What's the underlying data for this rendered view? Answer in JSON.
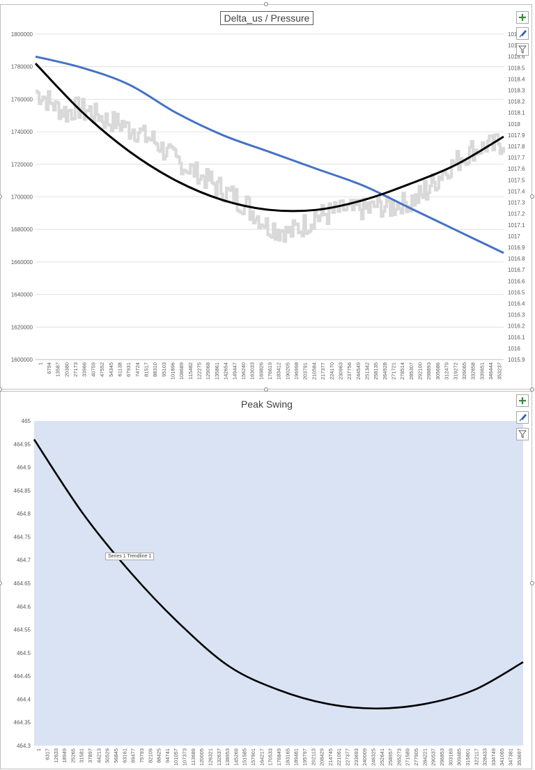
{
  "chart_data": [
    {
      "type": "line",
      "title": "Delta_us / Pressure",
      "y_left_ticks": [
        "1800000",
        "1780000",
        "1760000",
        "1740000",
        "1720000",
        "1700000",
        "1680000",
        "1660000",
        "1640000",
        "1620000",
        "1600000"
      ],
      "ylim_left": [
        1600000,
        1800000
      ],
      "y_right_ticks": [
        "1015.9",
        "1016",
        "1016.1",
        "1016.2",
        "1016.3",
        "1016.4",
        "1016.5",
        "1016.6",
        "1016.7",
        "1016.8",
        "1016.9",
        "1017",
        "1017.1",
        "1017.2",
        "1017.3",
        "1017.4",
        "1017.5",
        "1017.6",
        "1017.7",
        "1017.8",
        "1017.9",
        "1018",
        "1018.1",
        "1018.2",
        "1018.3",
        "1018.4",
        "1018.5",
        "1018.6",
        "1018.7",
        "1018.8"
      ],
      "ylim_right": [
        1015.9,
        1018.8
      ],
      "x_ticks": [
        "1",
        "6794",
        "13587",
        "20380",
        "27173",
        "33966",
        "40759",
        "47552",
        "54345",
        "61138",
        "67931",
        "74724",
        "81517",
        "88310",
        "95103",
        "101896",
        "108689",
        "115482",
        "122275",
        "129068",
        "135861",
        "142654",
        "149447",
        "156240",
        "163033",
        "169826",
        "176619",
        "183412",
        "190205",
        "196998",
        "203791",
        "210584",
        "217377",
        "224170",
        "230963",
        "237756",
        "244549",
        "251342",
        "258135",
        "264928",
        "271721",
        "278514",
        "285307",
        "292100",
        "298893",
        "305686",
        "312479",
        "319272",
        "326065",
        "332858",
        "339651",
        "346444",
        "353237"
      ],
      "series": [
        {
          "axis": "left",
          "color": "#d9d9d9",
          "style": "noisy",
          "x": [
            0,
            0.03,
            0.06,
            0.09,
            0.12,
            0.15,
            0.18,
            0.21,
            0.24,
            0.27,
            0.3,
            0.33,
            0.36,
            0.39,
            0.42,
            0.45,
            0.48,
            0.51,
            0.54,
            0.57,
            0.6,
            0.63,
            0.66,
            0.69,
            0.72,
            0.75,
            0.78,
            0.81,
            0.84,
            0.87,
            0.9,
            0.93,
            0.96,
            1.0
          ],
          "values": [
            1765000,
            1758000,
            1752000,
            1755000,
            1752000,
            1748000,
            1744000,
            1741000,
            1736000,
            1730000,
            1722000,
            1717000,
            1712000,
            1706000,
            1700000,
            1694000,
            1686000,
            1680000,
            1678000,
            1682000,
            1688000,
            1690000,
            1692000,
            1692000,
            1694000,
            1694000,
            1696000,
            1698000,
            1706000,
            1715000,
            1722000,
            1728000,
            1731000,
            1733000
          ]
        },
        {
          "axis": "right",
          "color": "#4472c4",
          "x": [
            0,
            0.1,
            0.2,
            0.3,
            0.4,
            0.5,
            0.6,
            0.7,
            0.8,
            0.9,
            1.0
          ],
          "values": [
            1018.6,
            1018.5,
            1018.35,
            1018.1,
            1017.9,
            1017.75,
            1017.6,
            1017.45,
            1017.25,
            1017.05,
            1016.85
          ]
        },
        {
          "axis": "left",
          "color": "#000000",
          "style": "trendline",
          "x": [
            0,
            0.1,
            0.2,
            0.3,
            0.4,
            0.5,
            0.6,
            0.7,
            0.8,
            0.9,
            1.0
          ],
          "values": [
            1782000,
            1752000,
            1728000,
            1710000,
            1698000,
            1692000,
            1692000,
            1698000,
            1708000,
            1720000,
            1737000
          ]
        }
      ]
    },
    {
      "type": "line",
      "title": "Peak Swing",
      "y_ticks": [
        "465",
        "464.95",
        "464.9",
        "464.85",
        "464.8",
        "464.75",
        "464.7",
        "464.65",
        "464.6",
        "464.55",
        "464.5",
        "464.45",
        "464.4",
        "464.35",
        "464.3"
      ],
      "ylim": [
        464.3,
        465
      ],
      "x_ticks": [
        "1",
        "6317",
        "12633",
        "18949",
        "25265",
        "31581",
        "37897",
        "44213",
        "50529",
        "56845",
        "63161",
        "69477",
        "75793",
        "82109",
        "88425",
        "94741",
        "101057",
        "107373",
        "113689",
        "120005",
        "126321",
        "132637",
        "138953",
        "145269",
        "151585",
        "157901",
        "164217",
        "170533",
        "176849",
        "183165",
        "189481",
        "195797",
        "202113",
        "208429",
        "214745",
        "221061",
        "227377",
        "233693",
        "240009",
        "246325",
        "252641",
        "258957",
        "265273",
        "271589",
        "277905",
        "284221",
        "290537",
        "296853",
        "303169",
        "309485",
        "315801",
        "322117",
        "328433",
        "334749",
        "341065",
        "347381",
        "353697"
      ],
      "series": [
        {
          "color": "#000000",
          "style": "trendline",
          "x": [
            0,
            0.1,
            0.2,
            0.3,
            0.4,
            0.5,
            0.6,
            0.7,
            0.8,
            0.9,
            1.0
          ],
          "values": [
            464.96,
            464.8,
            464.67,
            464.56,
            464.47,
            464.42,
            464.39,
            464.38,
            464.39,
            464.42,
            464.48
          ]
        }
      ],
      "plot_background": "#dae3f3",
      "annotation": "Series 1 Trendline 1"
    }
  ],
  "ui": {
    "icons": [
      "plus-icon",
      "brush-icon",
      "filter-icon"
    ],
    "accent": "#4472c4"
  }
}
